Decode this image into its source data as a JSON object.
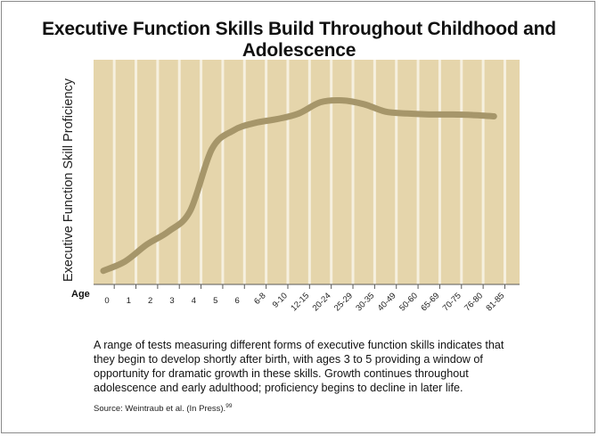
{
  "title": "Executive Function Skills Build Throughout Childhood and Adolescence",
  "caption": "A range of tests measuring different forms of executive function skills indicates that they begin to develop shortly after birth, with ages 3 to 5 providing a window of opportunity for dramatic growth in these skills. Growth continues throughout adolescence and early adulthood; proficiency begins to decline in later life.",
  "source": "Source: Weintraub et al. (In Press).",
  "source_ref": "99",
  "colors": {
    "plot_bg": "#e5d5ab",
    "grid": "#f6f0df",
    "curve": "#a6966a",
    "axis": "#5a5a5a"
  },
  "chart_data": {
    "type": "line",
    "title": "Executive Function Skills Build Throughout Childhood and Adolescence",
    "xlabel": "Age",
    "ylabel": "Executive Function Skill Proficiency",
    "categories": [
      "0",
      "1",
      "2",
      "3",
      "4",
      "5",
      "6",
      "6-8",
      "9-10",
      "12-15",
      "20-24",
      "25-29",
      "30-35",
      "40-49",
      "50-60",
      "65-69",
      "70-75",
      "76-80",
      "81-85"
    ],
    "values": [
      0.03,
      0.08,
      0.17,
      0.24,
      0.35,
      0.68,
      0.78,
      0.82,
      0.84,
      0.87,
      0.93,
      0.94,
      0.92,
      0.88,
      0.87,
      0.865,
      0.865,
      0.862,
      0.855
    ],
    "ylim": [
      0,
      1
    ],
    "grid": true,
    "legend": "none"
  }
}
